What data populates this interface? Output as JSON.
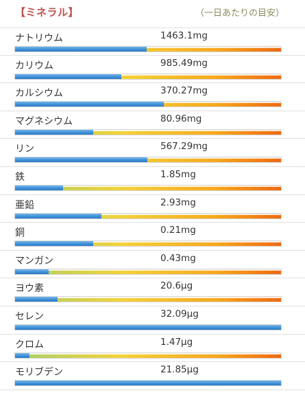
{
  "header": {
    "title": "【ミネラル】",
    "note": "（一日あたりの目安）"
  },
  "colors": {
    "title": "#c0504d",
    "bar_fill": "#3f90d8",
    "bar_track_start": "#a8d06a",
    "bar_track_end": "#ef6a12"
  },
  "minerals": [
    {
      "name": "ナトリウム",
      "value": "1463.1mg",
      "fraction": 0.495
    },
    {
      "name": "カリウム",
      "value": "985.49mg",
      "fraction": 0.4
    },
    {
      "name": "カルシウム",
      "value": "370.27mg",
      "fraction": 0.56
    },
    {
      "name": "マグネシウム",
      "value": "80.96mg",
      "fraction": 0.295
    },
    {
      "name": "リン",
      "value": "567.29mg",
      "fraction": 0.497
    },
    {
      "name": "鉄",
      "value": "1.85mg",
      "fraction": 0.18
    },
    {
      "name": "亜鉛",
      "value": "2.93mg",
      "fraction": 0.325
    },
    {
      "name": "銅",
      "value": "0.21mg",
      "fraction": 0.295
    },
    {
      "name": "マンガン",
      "value": "0.43mg",
      "fraction": 0.125
    },
    {
      "name": "ヨウ素",
      "value": "20.6μg",
      "fraction": 0.16
    },
    {
      "name": "セレン",
      "value": "32.09μg",
      "fraction": 1.0
    },
    {
      "name": "クロム",
      "value": "1.47μg",
      "fraction": 0.055
    },
    {
      "name": "モリブデン",
      "value": "21.85μg",
      "fraction": 1.0
    }
  ]
}
